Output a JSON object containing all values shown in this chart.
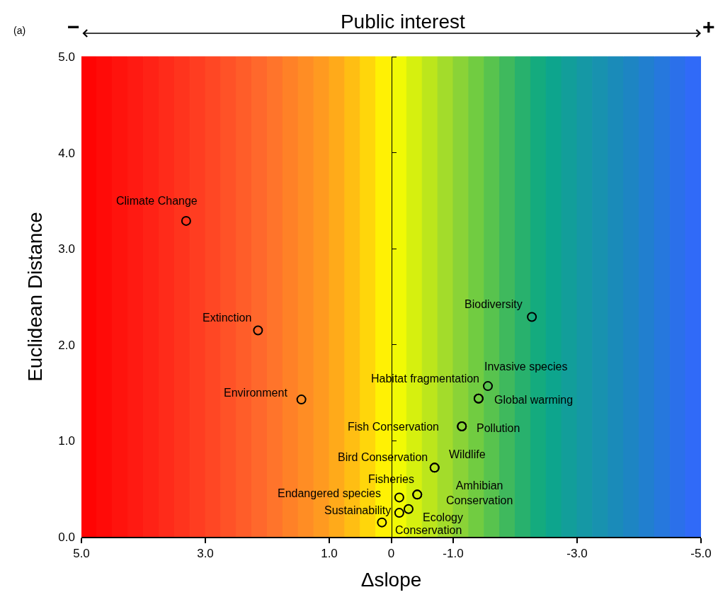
{
  "chart_data": {
    "type": "scatter",
    "title": "Public interest",
    "xlabel": "Δslope",
    "ylabel": "Euclidean Distance",
    "x": [
      3.31,
      2.15,
      1.45,
      -2.27,
      -1.56,
      -1.41,
      -1.41,
      -1.14,
      -1.14,
      -0.7,
      -0.7,
      -0.42,
      -0.42,
      -0.13,
      -0.13,
      -0.28,
      0.15
    ],
    "values": [
      3.29,
      2.15,
      1.43,
      2.29,
      1.57,
      1.44,
      1.44,
      1.15,
      1.15,
      0.72,
      0.72,
      0.44,
      0.44,
      0.41,
      0.25,
      0.29,
      0.15
    ],
    "color": "#000000",
    "marker": "circle",
    "xlim": [
      5,
      -5
    ],
    "xticks": [
      {
        "value": 5,
        "label": "5.0"
      },
      {
        "value": 3,
        "label": "3.0"
      },
      {
        "value": 1,
        "label": "1.0"
      },
      0,
      {
        "value": -1,
        "label": "-1.0"
      },
      {
        "value": -3,
        "label": "-3.0"
      },
      {
        "value": -5,
        "label": "-5.0"
      }
    ],
    "ylim": [
      0,
      5
    ],
    "yticks": [
      {
        "value": 0,
        "label": "0.0"
      },
      {
        "value": 1,
        "label": "1.0"
      },
      {
        "value": 2,
        "label": "2.0"
      },
      {
        "value": 3,
        "label": "3.0"
      },
      {
        "value": 4,
        "label": "4.0"
      },
      {
        "value": 5,
        "label": "5.0"
      }
    ],
    "annotations": [
      "(a)",
      "−",
      "+",
      {
        "text": "Climate Change",
        "x": 3.31,
        "y": 3.29
      },
      {
        "text": "Extinction",
        "x": 2.15,
        "y": 2.15
      },
      {
        "text": "Environment",
        "x": 1.45,
        "y": 1.43
      },
      {
        "text": "Biodiversity",
        "x": -2.27,
        "y": 2.29
      },
      {
        "text": "Invasive species",
        "x": -1.56,
        "y": 1.57
      },
      {
        "text": "Habitat fragmentation",
        "x": -1.41,
        "y": 1.44
      },
      {
        "text": "Global warming",
        "x": -1.41,
        "y": 1.44
      },
      {
        "text": "Fish Conservation",
        "x": -1.14,
        "y": 1.15
      },
      {
        "text": "Pollution",
        "x": -1.14,
        "y": 1.15
      },
      {
        "text": "Bird Conservation",
        "x": -0.7,
        "y": 0.72
      },
      {
        "text": "Wildlife",
        "x": -0.7,
        "y": 0.72
      },
      {
        "text": "Fisheries",
        "x": -0.42,
        "y": 0.44
      },
      {
        "text": "Amhibian\nConservation",
        "x": -0.42,
        "y": 0.44
      },
      {
        "text": "Endangered species",
        "x": -0.13,
        "y": 0.41
      },
      {
        "text": "Sustainability",
        "x": -0.13,
        "y": 0.25
      },
      {
        "text": "Ecology",
        "x": -0.28,
        "y": 0.29
      },
      {
        "text": "Conservation",
        "x": 0.15,
        "y": 0.15
      }
    ],
    "bands": [
      {
        "axis": "x",
        "from": 5,
        "to": 4.75,
        "color": "#ff0403"
      },
      {
        "axis": "x",
        "from": 4.75,
        "to": 4.5,
        "color": "#ff0b08"
      },
      {
        "axis": "x",
        "from": 4.5,
        "to": 4.25,
        "color": "#ff130d"
      },
      {
        "axis": "x",
        "from": 4.25,
        "to": 4,
        "color": "#ff1a12"
      },
      {
        "axis": "x",
        "from": 4,
        "to": 3.75,
        "color": "#ff2216"
      },
      {
        "axis": "x",
        "from": 3.75,
        "to": 3.5,
        "color": "#ff2b1a"
      },
      {
        "axis": "x",
        "from": 3.5,
        "to": 3.25,
        "color": "#ff341d"
      },
      {
        "axis": "x",
        "from": 3.25,
        "to": 3,
        "color": "#ff3d21"
      },
      {
        "axis": "x",
        "from": 3,
        "to": 2.75,
        "color": "#ff4724"
      },
      {
        "axis": "x",
        "from": 2.75,
        "to": 2.5,
        "color": "#ff5227"
      },
      {
        "axis": "x",
        "from": 2.5,
        "to": 2.25,
        "color": "#ff5d29"
      },
      {
        "axis": "x",
        "from": 2.25,
        "to": 2,
        "color": "#ff682c"
      },
      {
        "axis": "x",
        "from": 2,
        "to": 1.75,
        "color": "#ff742b"
      },
      {
        "axis": "x",
        "from": 1.75,
        "to": 1.5,
        "color": "#ff8127"
      },
      {
        "axis": "x",
        "from": 1.5,
        "to": 1.25,
        "color": "#ff8d24"
      },
      {
        "axis": "x",
        "from": 1.25,
        "to": 1,
        "color": "#ff9a20"
      },
      {
        "axis": "x",
        "from": 1,
        "to": 0.75,
        "color": "#ffaa1a"
      },
      {
        "axis": "x",
        "from": 0.75,
        "to": 0.5,
        "color": "#ffbe13"
      },
      {
        "axis": "x",
        "from": 0.5,
        "to": 0.25,
        "color": "#ffd60b"
      },
      {
        "axis": "x",
        "from": 0.25,
        "to": 0,
        "color": "#fff104"
      },
      {
        "axis": "x",
        "from": 0,
        "to": -0.25,
        "color": "#f1fa05"
      },
      {
        "axis": "x",
        "from": -0.25,
        "to": -0.5,
        "color": "#d6f00f"
      },
      {
        "axis": "x",
        "from": -0.5,
        "to": -0.75,
        "color": "#bce61c"
      },
      {
        "axis": "x",
        "from": -0.75,
        "to": -1,
        "color": "#a3dc2b"
      },
      {
        "axis": "x",
        "from": -1,
        "to": -1.25,
        "color": "#8ad337"
      },
      {
        "axis": "x",
        "from": -1.25,
        "to": -1.5,
        "color": "#71cc41"
      },
      {
        "axis": "x",
        "from": -1.5,
        "to": -1.75,
        "color": "#58c34e"
      },
      {
        "axis": "x",
        "from": -1.75,
        "to": -2,
        "color": "#3fb95d"
      },
      {
        "axis": "x",
        "from": -2,
        "to": -2.25,
        "color": "#28b16d"
      },
      {
        "axis": "x",
        "from": -2.25,
        "to": -2.5,
        "color": "#14ab7e"
      },
      {
        "axis": "x",
        "from": -2.5,
        "to": -2.75,
        "color": "#0da58d"
      },
      {
        "axis": "x",
        "from": -2.75,
        "to": -3,
        "color": "#129e9a"
      },
      {
        "axis": "x",
        "from": -3,
        "to": -3.25,
        "color": "#1598a5"
      },
      {
        "axis": "x",
        "from": -3.25,
        "to": -3.5,
        "color": "#1892af"
      },
      {
        "axis": "x",
        "from": -3.5,
        "to": -3.75,
        "color": "#1a8bb9"
      },
      {
        "axis": "x",
        "from": -3.75,
        "to": -4,
        "color": "#1d85c3"
      },
      {
        "axis": "x",
        "from": -4,
        "to": -4.25,
        "color": "#217fcf"
      },
      {
        "axis": "x",
        "from": -4.25,
        "to": -4.5,
        "color": "#2678dd"
      },
      {
        "axis": "x",
        "from": -4.5,
        "to": -4.75,
        "color": "#2b70ea"
      },
      {
        "axis": "x",
        "from": -4.75,
        "to": -5,
        "color": "#306af8"
      }
    ]
  }
}
